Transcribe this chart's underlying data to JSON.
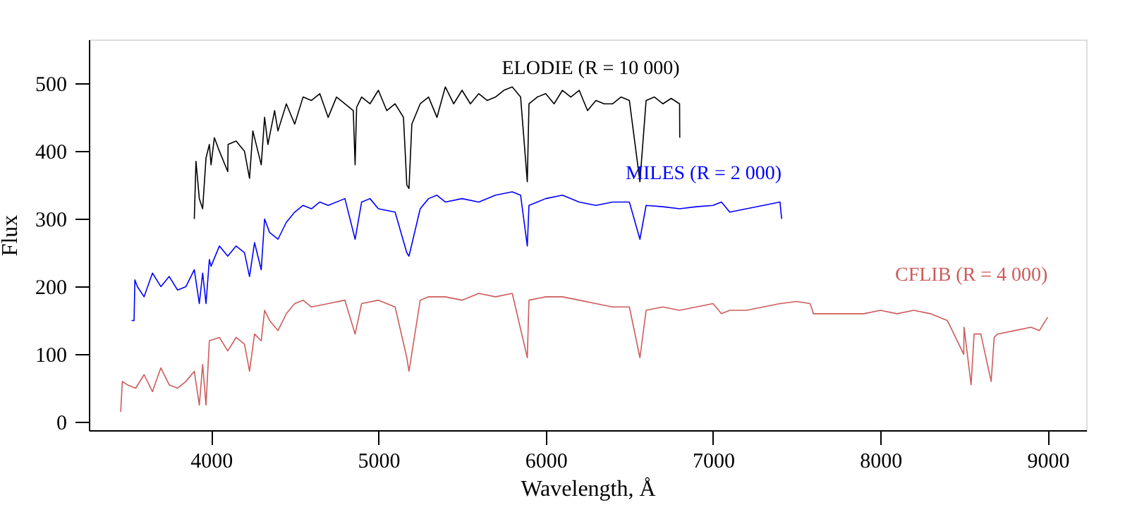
{
  "chart_data": {
    "type": "line",
    "xlabel": "Wavelength, Å",
    "ylabel": "Flux",
    "xlim": [
      3270,
      9230
    ],
    "ylim": [
      -12,
      565
    ],
    "xticks": [
      4000,
      5000,
      6000,
      7000,
      8000,
      9000
    ],
    "yticks": [
      0,
      100,
      200,
      300,
      400,
      500
    ],
    "grid": false,
    "line_style": "solid",
    "marker": "none",
    "series": [
      {
        "name": "ELODIE (R = 10 000)",
        "color": "#000000",
        "x": [
          3900,
          3910,
          3930,
          3950,
          3970,
          3990,
          4000,
          4020,
          4050,
          4100,
          4102,
          4150,
          4200,
          4230,
          4250,
          4300,
          4320,
          4340,
          4380,
          4400,
          4450,
          4500,
          4550,
          4600,
          4650,
          4700,
          4750,
          4800,
          4850,
          4861,
          4870,
          4900,
          4950,
          5000,
          5050,
          5100,
          5150,
          5170,
          5183,
          5200,
          5250,
          5300,
          5350,
          5400,
          5450,
          5500,
          5550,
          5600,
          5650,
          5700,
          5750,
          5800,
          5850,
          5890,
          5900,
          5950,
          6000,
          6050,
          6100,
          6150,
          6200,
          6250,
          6300,
          6350,
          6400,
          6450,
          6500,
          6563,
          6600,
          6650,
          6700,
          6750,
          6800,
          6801
        ],
        "values": [
          300,
          385,
          330,
          315,
          390,
          410,
          380,
          420,
          400,
          370,
          410,
          415,
          400,
          360,
          430,
          380,
          450,
          410,
          460,
          430,
          470,
          440,
          480,
          475,
          485,
          450,
          480,
          470,
          460,
          380,
          465,
          480,
          470,
          490,
          460,
          470,
          450,
          350,
          345,
          440,
          470,
          480,
          450,
          495,
          470,
          490,
          470,
          485,
          475,
          480,
          490,
          495,
          480,
          355,
          470,
          480,
          485,
          470,
          490,
          480,
          490,
          460,
          475,
          470,
          470,
          480,
          475,
          355,
          475,
          480,
          470,
          478,
          470,
          420
        ]
      },
      {
        "name": "MILES (R = 2 000)",
        "color": "#0000ff",
        "x": [
          3525,
          3540,
          3545,
          3560,
          3600,
          3650,
          3700,
          3750,
          3800,
          3850,
          3900,
          3930,
          3950,
          3970,
          3990,
          4000,
          4050,
          4100,
          4150,
          4200,
          4230,
          4260,
          4300,
          4320,
          4350,
          4400,
          4450,
          4500,
          4550,
          4600,
          4650,
          4700,
          4800,
          4861,
          4900,
          4950,
          5000,
          5100,
          5170,
          5183,
          5250,
          5300,
          5350,
          5400,
          5500,
          5600,
          5700,
          5800,
          5850,
          5890,
          5900,
          6000,
          6100,
          6200,
          6300,
          6400,
          6500,
          6563,
          6600,
          6700,
          6800,
          6900,
          7000,
          7050,
          7100,
          7200,
          7300,
          7400,
          7410
        ],
        "values": [
          150,
          150,
          210,
          200,
          185,
          220,
          200,
          215,
          195,
          200,
          225,
          175,
          220,
          175,
          240,
          230,
          260,
          245,
          260,
          250,
          215,
          265,
          225,
          300,
          280,
          270,
          295,
          310,
          320,
          315,
          325,
          320,
          330,
          270,
          325,
          330,
          315,
          310,
          250,
          245,
          315,
          330,
          335,
          325,
          330,
          325,
          335,
          340,
          335,
          260,
          320,
          330,
          335,
          325,
          320,
          325,
          325,
          270,
          320,
          318,
          315,
          318,
          320,
          325,
          310,
          315,
          320,
          325,
          300
        ]
      },
      {
        "name": "CFLIB (R = 4 000)",
        "color": "#cd5c5c",
        "x": [
          3460,
          3470,
          3500,
          3550,
          3600,
          3650,
          3700,
          3750,
          3800,
          3850,
          3900,
          3930,
          3950,
          3970,
          3990,
          4050,
          4100,
          4150,
          4200,
          4230,
          4260,
          4300,
          4320,
          4350,
          4400,
          4450,
          4500,
          4550,
          4600,
          4700,
          4800,
          4861,
          4900,
          5000,
          5100,
          5170,
          5183,
          5250,
          5300,
          5400,
          5500,
          5600,
          5700,
          5800,
          5890,
          5900,
          6000,
          6100,
          6200,
          6300,
          6400,
          6500,
          6563,
          6600,
          6700,
          6800,
          6900,
          7000,
          7050,
          7100,
          7200,
          7300,
          7400,
          7500,
          7580,
          7600,
          7700,
          7800,
          7900,
          8000,
          8100,
          8200,
          8300,
          8400,
          8498,
          8500,
          8542,
          8560,
          8600,
          8662,
          8680,
          8700,
          8800,
          8900,
          8950,
          9000
        ],
        "values": [
          15,
          60,
          55,
          50,
          70,
          45,
          80,
          55,
          50,
          60,
          75,
          25,
          85,
          25,
          120,
          125,
          105,
          125,
          115,
          75,
          130,
          120,
          165,
          150,
          135,
          160,
          175,
          180,
          170,
          175,
          180,
          130,
          175,
          180,
          170,
          95,
          75,
          180,
          185,
          185,
          180,
          190,
          185,
          190,
          95,
          180,
          185,
          185,
          180,
          175,
          170,
          170,
          95,
          165,
          170,
          165,
          170,
          175,
          160,
          165,
          165,
          170,
          175,
          178,
          175,
          160,
          160,
          160,
          160,
          165,
          160,
          165,
          160,
          150,
          100,
          140,
          55,
          130,
          130,
          60,
          125,
          130,
          135,
          140,
          135,
          155
        ]
      }
    ],
    "legend": false
  }
}
